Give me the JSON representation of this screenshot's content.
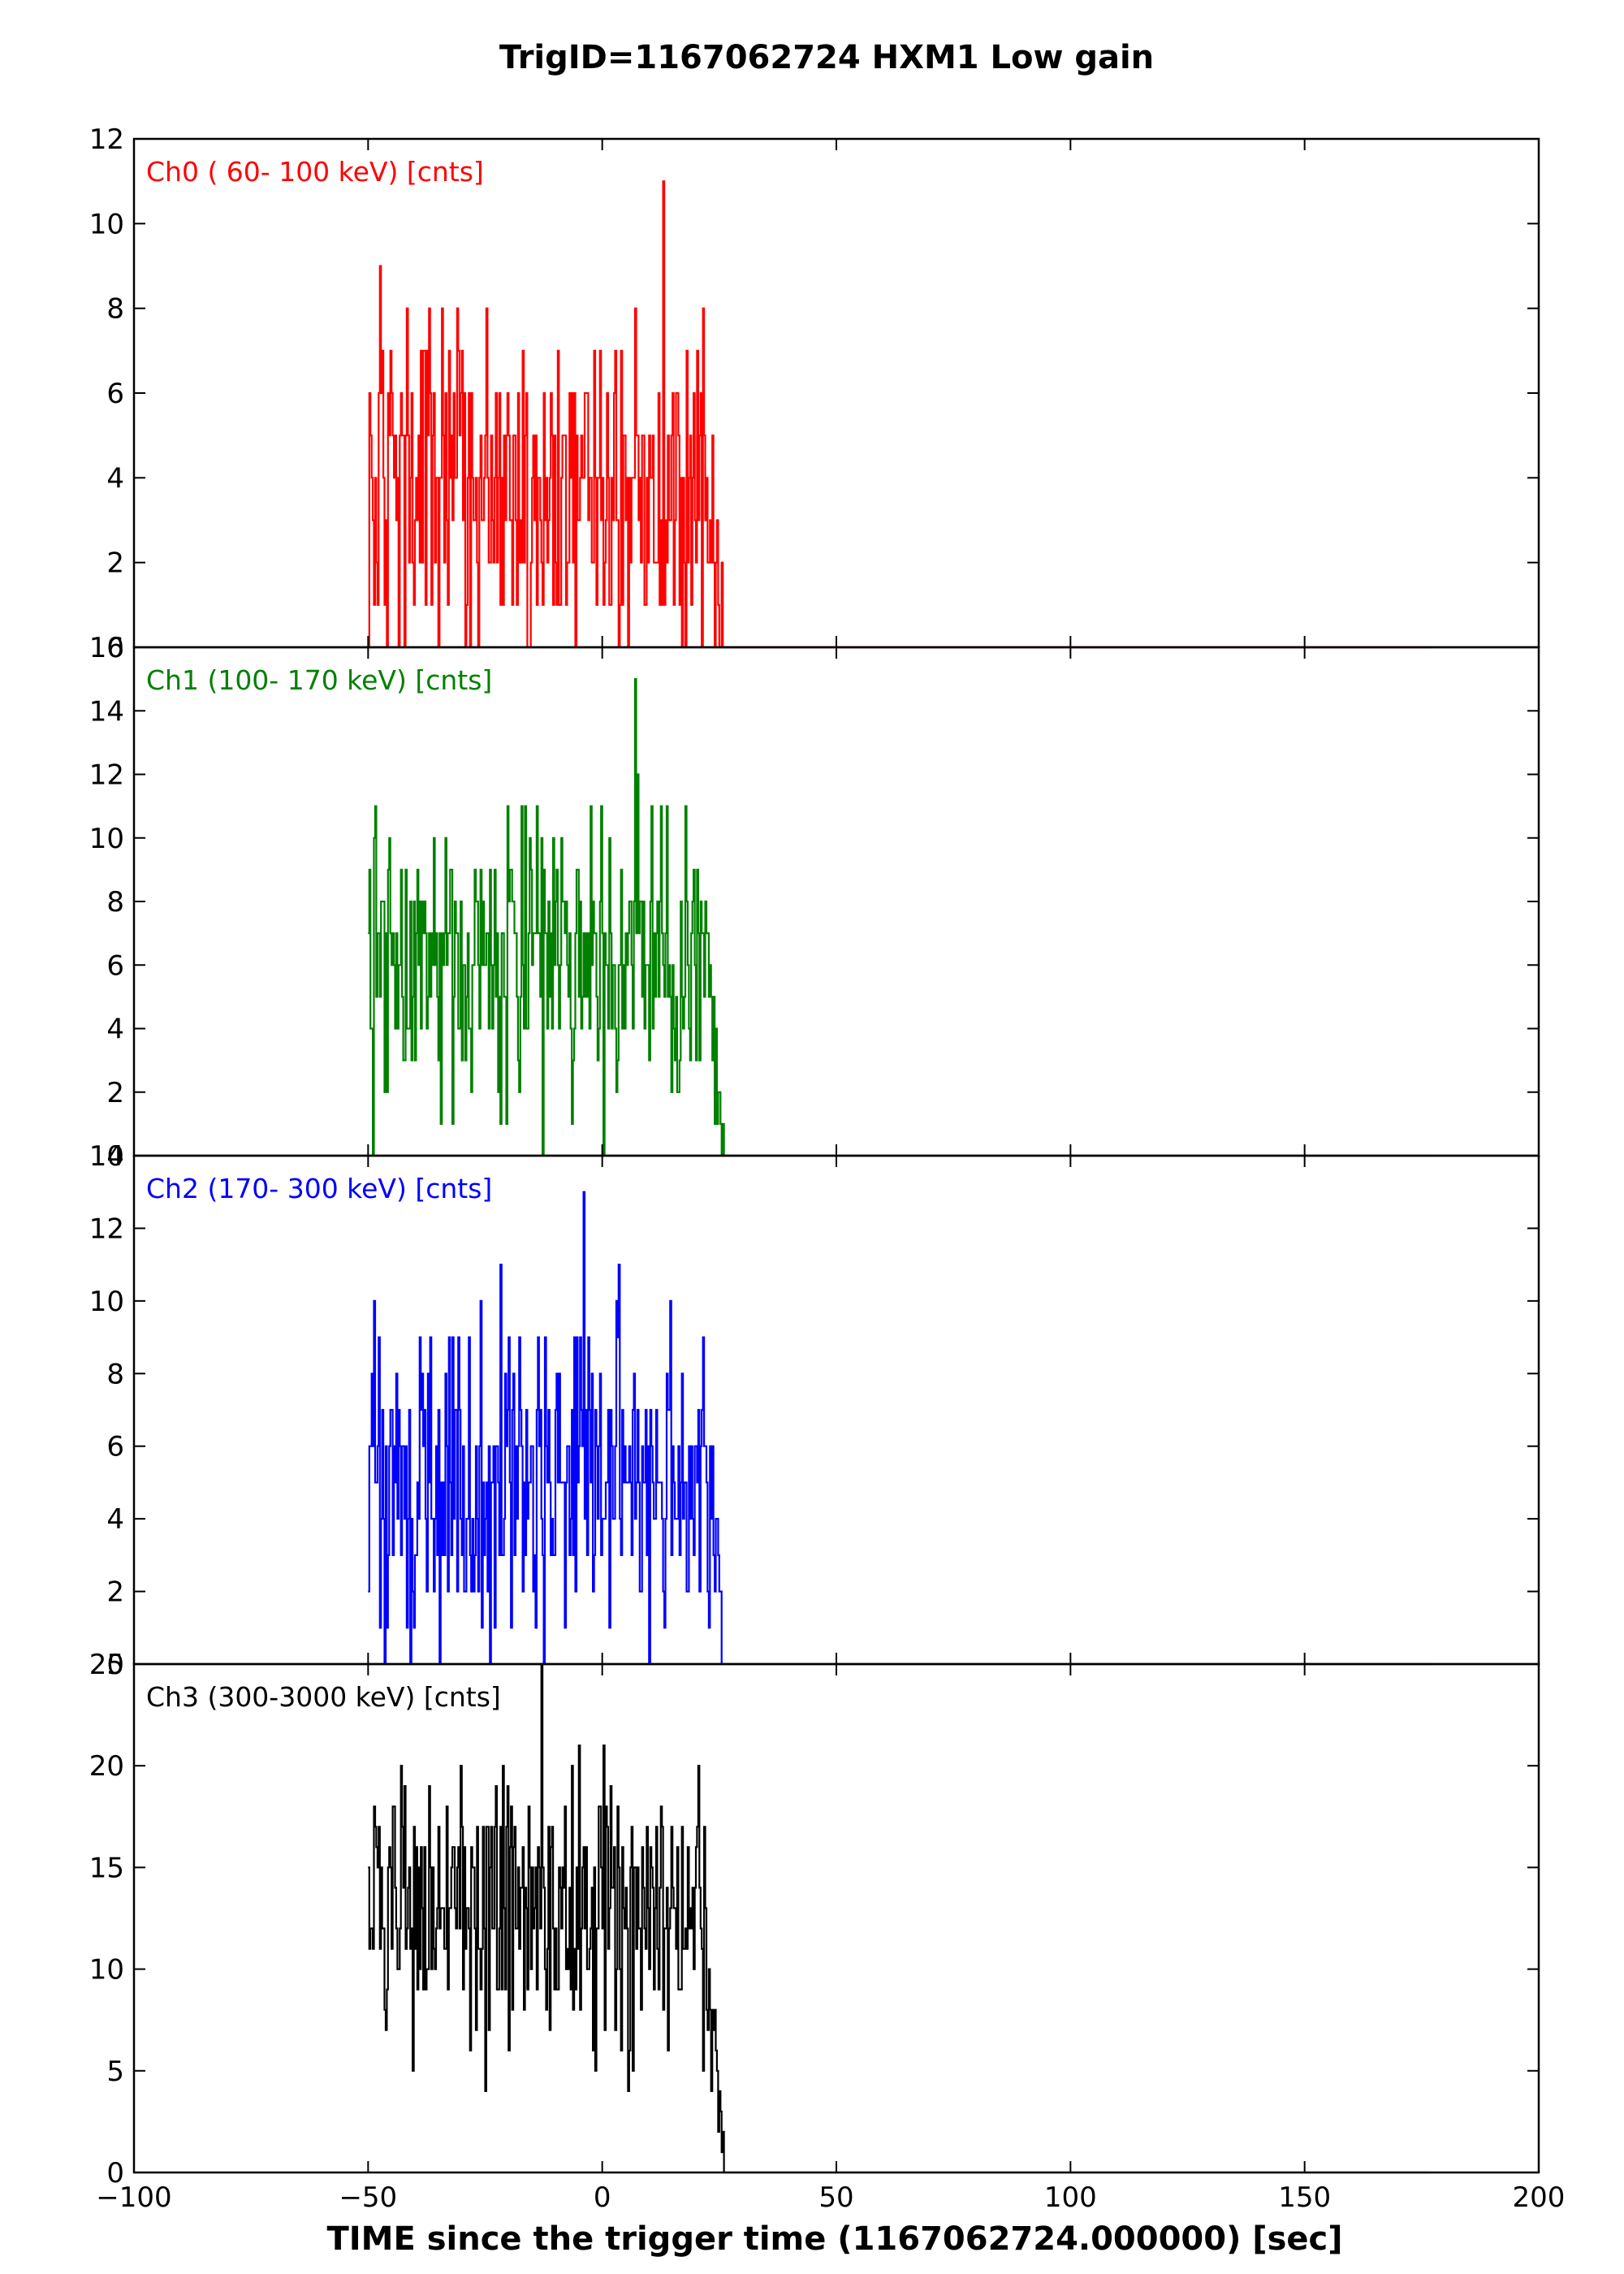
{
  "title": "TrigID=1167062724 HXM1 Low gain",
  "xlabel": "TIME since the trigger time (1167062724.000000) [sec]",
  "colors": {
    "ch0": "#ff0000",
    "ch1": "#008000",
    "ch2": "#0000ff",
    "ch3": "#000000"
  },
  "chart_data": [
    {
      "type": "line",
      "title": "",
      "label": "Ch0 ( 60- 100 keV) [cnts]",
      "color": "#ff0000",
      "xlim": [
        -100,
        200
      ],
      "ylim": [
        0,
        12
      ],
      "xticks": [
        -100,
        -50,
        0,
        50,
        100,
        150,
        200
      ],
      "yticks": [
        0,
        2,
        4,
        6,
        8,
        10,
        12
      ],
      "yticklabels": [
        "0",
        "2",
        "4",
        "6",
        "8",
        "10",
        "12"
      ],
      "series": [
        {
          "name": "",
          "x_start": -50,
          "x_end": 26,
          "step": 0.25,
          "mean": 3.8,
          "peak": 11,
          "peak_x": 13,
          "tail_start": 22
        }
      ]
    },
    {
      "type": "line",
      "title": "",
      "label": "Ch1 (100- 170 keV) [cnts]",
      "color": "#008000",
      "xlim": [
        -100,
        200
      ],
      "ylim": [
        0,
        16
      ],
      "xticks": [
        -100,
        -50,
        0,
        50,
        100,
        150,
        200
      ],
      "yticks": [
        0,
        2,
        4,
        6,
        8,
        10,
        12,
        14,
        16
      ],
      "yticklabels": [
        "0",
        "2",
        "4",
        "6",
        "8",
        "10",
        "12",
        "14",
        "16"
      ],
      "series": [
        {
          "name": "",
          "x_start": -50,
          "x_end": 26,
          "step": 0.25,
          "mean": 6.2,
          "peak": 15,
          "peak_x": 7,
          "tail_start": 22
        }
      ]
    },
    {
      "type": "line",
      "title": "",
      "label": "Ch2 (170- 300 keV) [cnts]",
      "color": "#0000ff",
      "xlim": [
        -100,
        200
      ],
      "ylim": [
        0,
        14
      ],
      "xticks": [
        -100,
        -50,
        0,
        50,
        100,
        150,
        200
      ],
      "yticks": [
        0,
        2,
        4,
        6,
        8,
        10,
        12,
        14
      ],
      "yticklabels": [
        "0",
        "2",
        "4",
        "6",
        "8",
        "10",
        "12",
        "14"
      ],
      "series": [
        {
          "name": "",
          "x_start": -50,
          "x_end": 26,
          "step": 0.25,
          "mean": 5.3,
          "peak": 13,
          "peak_x": -4,
          "tail_start": 22
        }
      ]
    },
    {
      "type": "line",
      "title": "",
      "label": "Ch3 (300-3000 keV) [cnts]",
      "color": "#000000",
      "xlim": [
        -100,
        200
      ],
      "ylim": [
        0,
        25
      ],
      "xticks": [
        -100,
        -50,
        0,
        50,
        100,
        150,
        200
      ],
      "xticklabels": [
        "−100",
        "−50",
        "0",
        "50",
        "100",
        "150",
        "200"
      ],
      "yticks": [
        0,
        5,
        10,
        15,
        20,
        25
      ],
      "yticklabels": [
        "0",
        "5",
        "10",
        "15",
        "20",
        "25"
      ],
      "series": [
        {
          "name": "",
          "x_start": -50,
          "x_end": 26,
          "step": 0.25,
          "mean": 12.8,
          "peak": 25,
          "peak_x": -13,
          "tail_start": 21
        }
      ]
    }
  ]
}
